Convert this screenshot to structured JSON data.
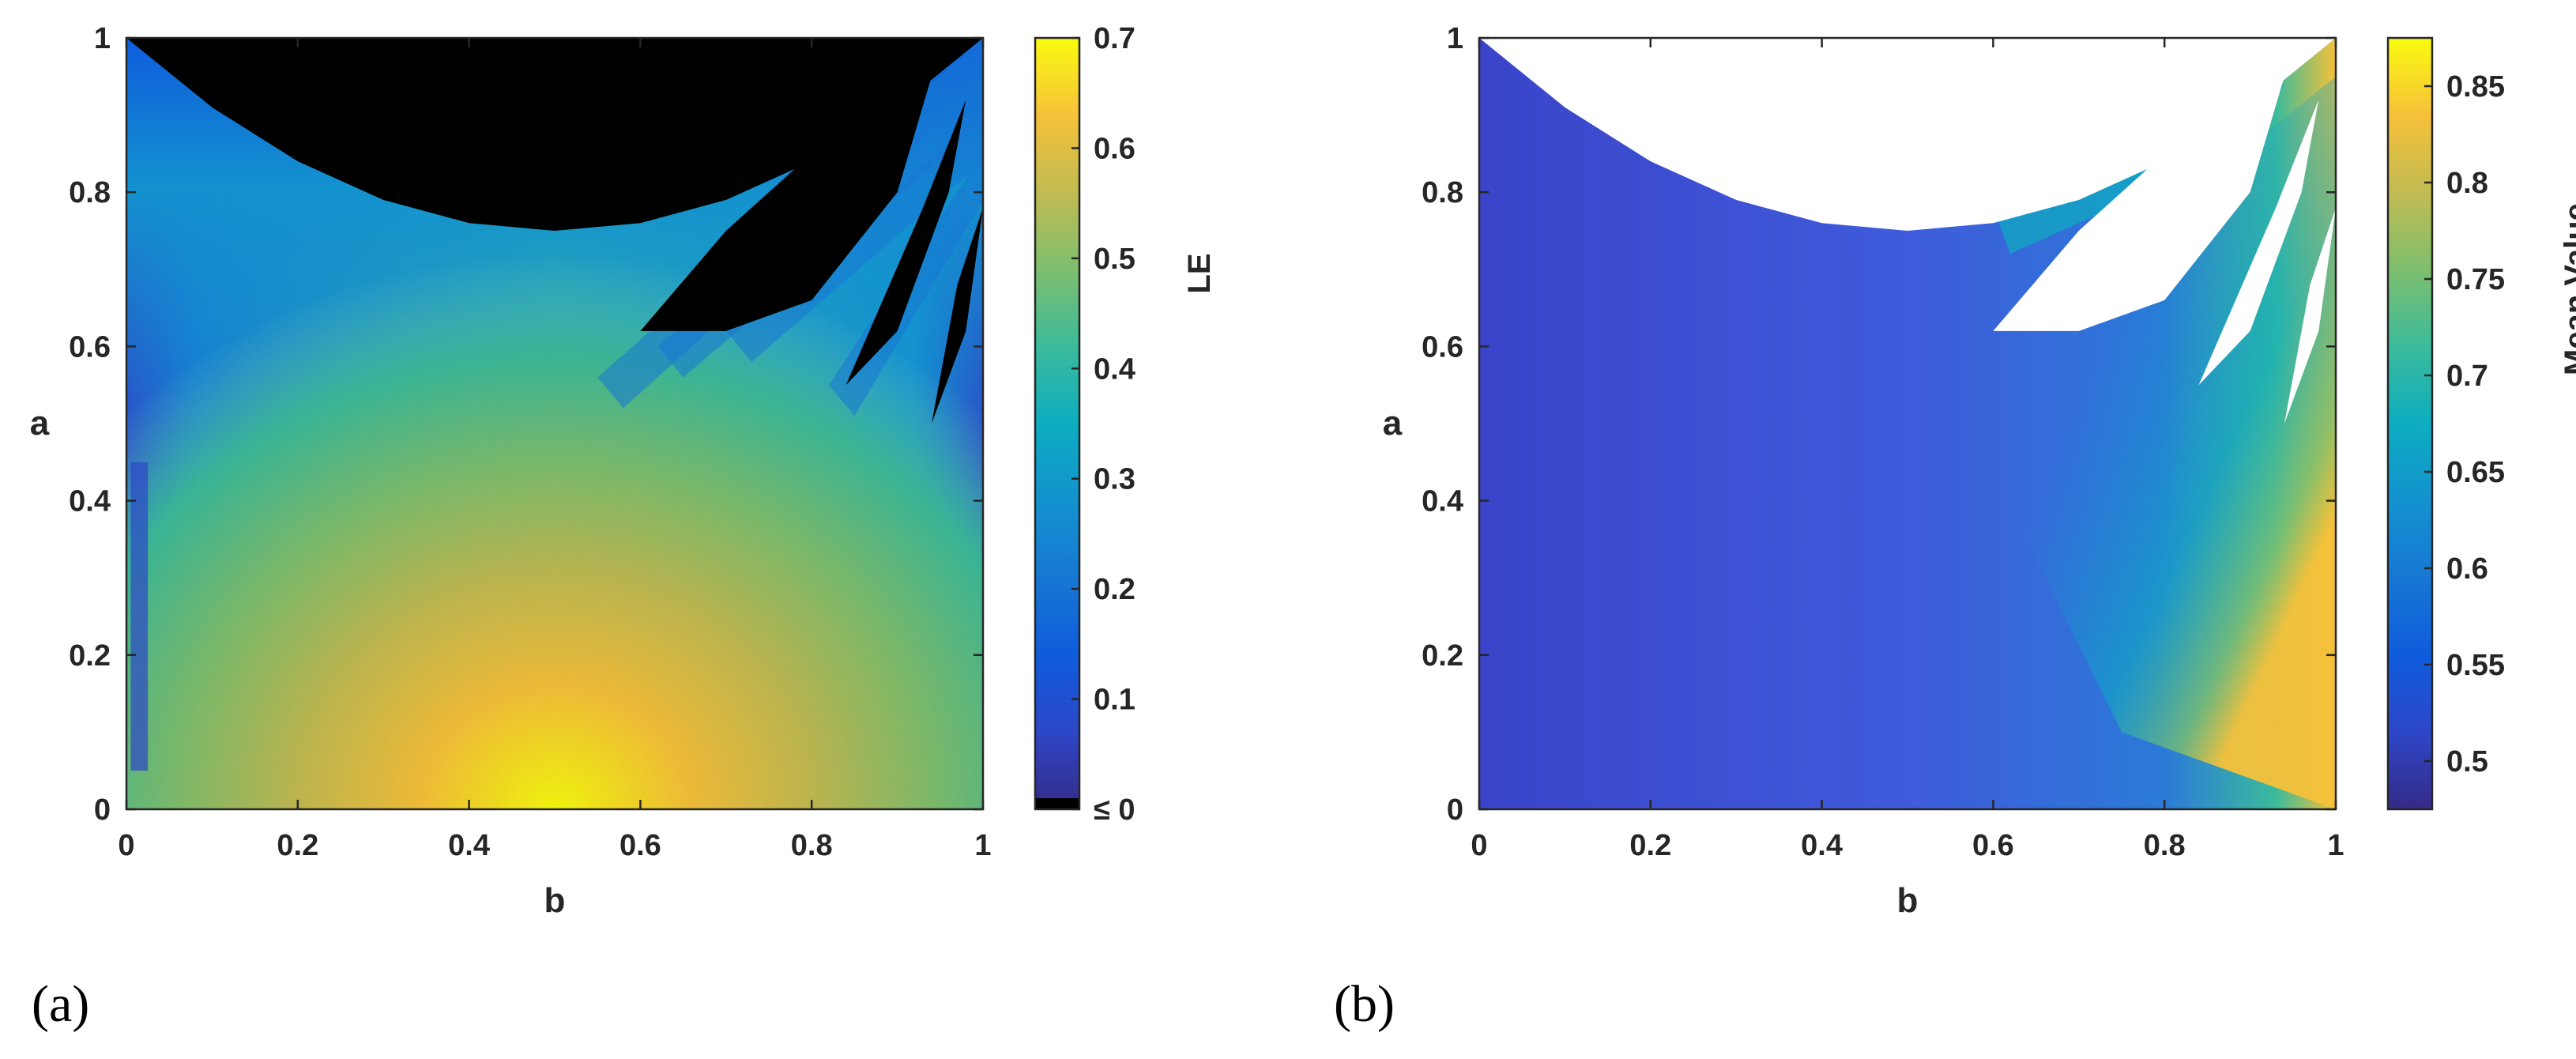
{
  "chart_data": [
    {
      "type": "heatmap",
      "panel_label": "(a)",
      "xlabel": "b",
      "ylabel": "a",
      "xlim": [
        0,
        1
      ],
      "ylim": [
        0,
        1
      ],
      "x_ticks": [
        "0",
        "0.2",
        "0.4",
        "0.6",
        "0.8",
        "1"
      ],
      "y_ticks": [
        "0",
        "0.2",
        "0.4",
        "0.6",
        "0.8",
        "1"
      ],
      "colorbar": {
        "label": "LE",
        "range": [
          0,
          0.7
        ],
        "ticks": [
          "≤ 0",
          "0.1",
          "0.2",
          "0.3",
          "0.4",
          "0.5",
          "0.6",
          "0.7"
        ],
        "colormap": "parula",
        "below_range_color": "#000000"
      },
      "regions": [
        {
          "description": "non-positive LE (black)",
          "boundary_b": [
            0,
            0.1,
            0.2,
            0.3,
            0.4,
            0.5,
            0.6,
            0.7,
            0.8,
            0.9,
            1.0
          ],
          "boundary_a": [
            1.0,
            0.91,
            0.84,
            0.79,
            0.76,
            0.75,
            0.76,
            0.79,
            0.84,
            0.91,
            1.0
          ]
        },
        {
          "description": "peak LE",
          "center_b": 0.5,
          "center_a": 0.02,
          "value": 0.7
        }
      ]
    },
    {
      "type": "heatmap",
      "panel_label": "(b)",
      "xlabel": "b",
      "ylabel": "a",
      "xlim": [
        0,
        1
      ],
      "ylim": [
        0,
        1
      ],
      "x_ticks": [
        "0",
        "0.2",
        "0.4",
        "0.6",
        "0.8",
        "1"
      ],
      "y_ticks": [
        "0",
        "0.2",
        "0.4",
        "0.6",
        "0.8",
        "1"
      ],
      "colorbar": {
        "label": "Mean Value",
        "range": [
          0.475,
          0.875
        ],
        "ticks": [
          "0.5",
          "0.55",
          "0.6",
          "0.65",
          "0.7",
          "0.75",
          "0.8",
          "0.85"
        ],
        "colormap": "parula",
        "undefined_color": "#ffffff"
      },
      "regions": [
        {
          "description": "no value (white)",
          "boundary_b": [
            0,
            0.1,
            0.2,
            0.3,
            0.4,
            0.5,
            0.6,
            0.7,
            0.8,
            0.9,
            1.0
          ],
          "boundary_a": [
            1.0,
            0.91,
            0.84,
            0.79,
            0.76,
            0.75,
            0.76,
            0.79,
            0.84,
            0.91,
            1.0
          ]
        },
        {
          "description": "highest mean value near b = 1",
          "center_b": 1.0,
          "center_a": 0.4,
          "value": 0.82
        }
      ]
    }
  ]
}
